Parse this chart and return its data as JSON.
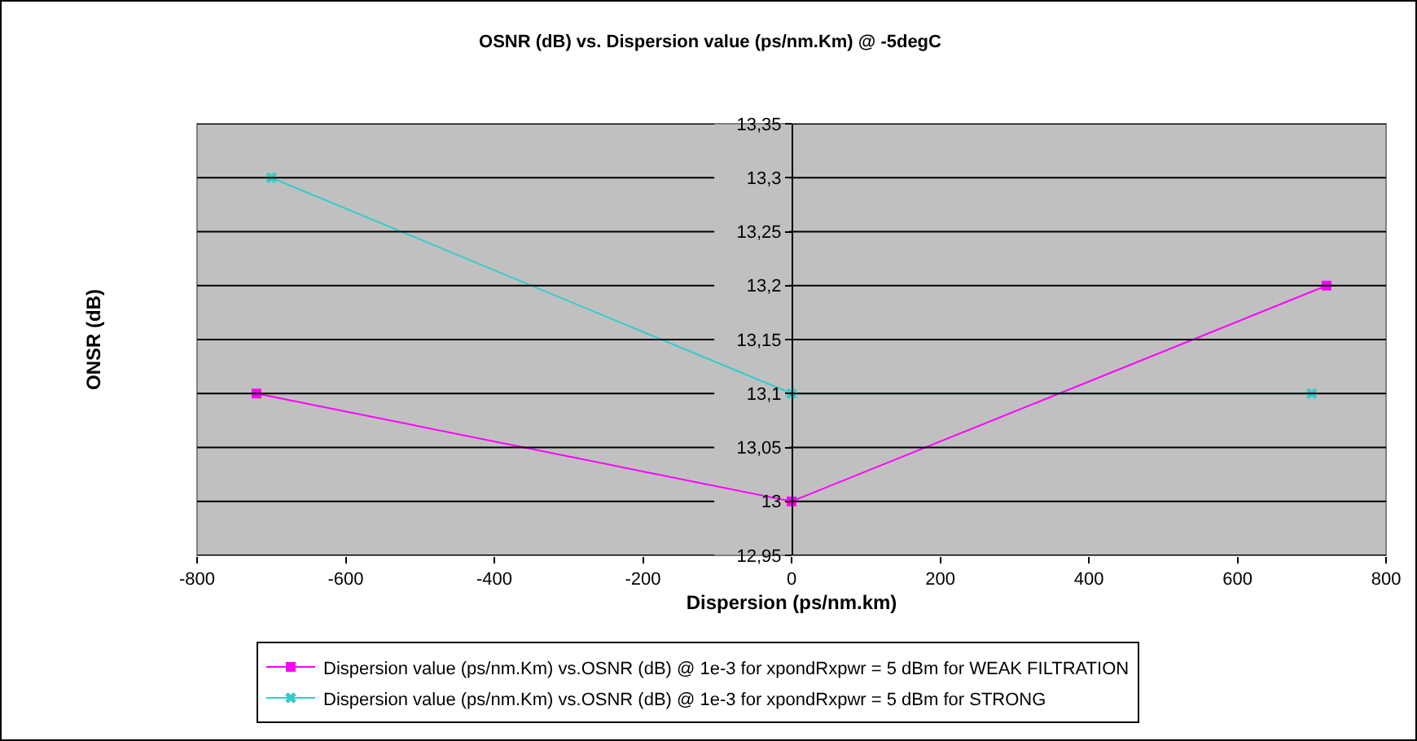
{
  "chart_data": {
    "type": "line",
    "title": "OSNR (dB) vs. Dispersion value (ps/nm.Km) @ -5degC",
    "xlabel": "Dispersion (ps/nm.km)",
    "ylabel": "ONSR (dB)",
    "series": [
      {
        "name": "Dispersion value (ps/nm.Km) vs.OSNR (dB) @ 1e-3 for xpondRxpwr = 5 dBm for WEAK FILTRATION",
        "color": "#ff00ff",
        "marker": "square",
        "x": [
          -720,
          0,
          720
        ],
        "values": [
          13.1,
          13.0,
          13.2
        ]
      },
      {
        "name": "Dispersion value (ps/nm.Km) vs.OSNR (dB) @ 1e-3 for xpondRxpwr = 5 dBm for STRONG",
        "color": "#33cccc",
        "marker": "cross",
        "x": [
          -700,
          0,
          700
        ],
        "values": [
          13.3,
          13.1,
          13.1
        ]
      }
    ],
    "xlim": [
      -800,
      800
    ],
    "xticks": [
      -800,
      -600,
      -400,
      -200,
      0,
      200,
      400,
      600,
      800
    ],
    "ylim": [
      12.95,
      13.35
    ],
    "yticks": [
      {
        "value": 12.95,
        "label": "12,95"
      },
      {
        "value": 13,
        "label": "13"
      },
      {
        "value": 13.05,
        "label": "13,05"
      },
      {
        "value": 13.1,
        "label": "13,1"
      },
      {
        "value": 13.15,
        "label": "13,15"
      },
      {
        "value": 13.2,
        "label": "13,2"
      },
      {
        "value": 13.25,
        "label": "13,25"
      },
      {
        "value": 13.3,
        "label": "13,3"
      },
      {
        "value": 13.35,
        "label": "13,35"
      }
    ],
    "grid": "y",
    "legend": "bottom",
    "line_style": "solid"
  }
}
